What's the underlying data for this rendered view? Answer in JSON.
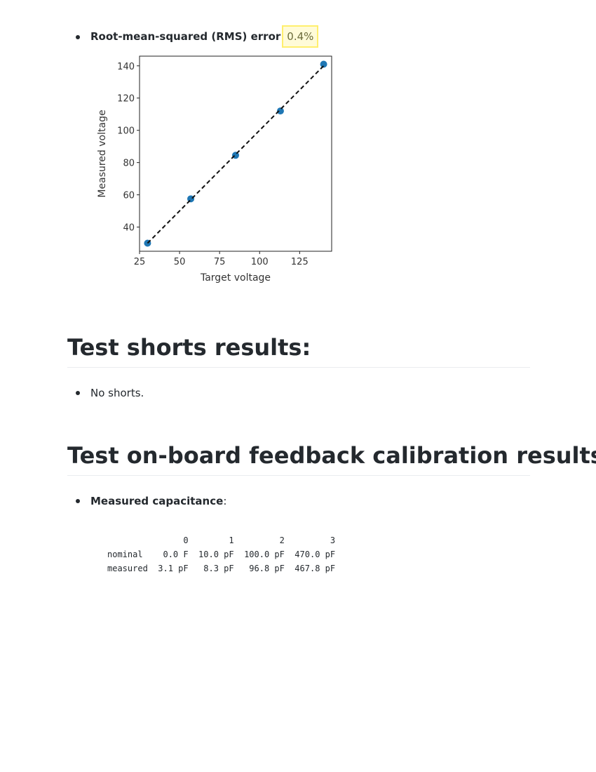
{
  "rms": {
    "label": "Root-mean-squared (RMS) error",
    "value": "0.4%"
  },
  "chart_data": {
    "type": "scatter",
    "xlabel": "Target voltage",
    "ylabel": "Measured voltage",
    "xlim": [
      25,
      145
    ],
    "ylim": [
      25,
      146
    ],
    "xticks": [
      25,
      50,
      75,
      100,
      125
    ],
    "yticks": [
      40,
      60,
      80,
      100,
      120,
      140
    ],
    "points": [
      [
        30,
        30
      ],
      [
        57,
        57.5
      ],
      [
        85,
        84.5
      ],
      [
        113,
        112
      ],
      [
        140,
        141
      ]
    ],
    "fit_line": [
      [
        30,
        30
      ],
      [
        141,
        141
      ]
    ],
    "point_color": "#1f77b4",
    "line_color": "#111111",
    "line_style": "dashed"
  },
  "shorts": {
    "heading": "Test shorts results:",
    "items": [
      "No shorts."
    ]
  },
  "feedback": {
    "heading": "Test on-board feedback calibration results:",
    "capacitance_label": "Measured capacitance",
    "capacitance_suffix": ":",
    "table_columns": [
      "0",
      "1",
      "2",
      "3"
    ],
    "table_rows": [
      {
        "label": "nominal",
        "values": [
          "0.0 F",
          "10.0 pF",
          "100.0 pF",
          "470.0 pF"
        ]
      },
      {
        "label": "measured",
        "values": [
          "3.1 pF",
          "8.3 pF",
          "96.8 pF",
          "467.8 pF"
        ]
      }
    ]
  }
}
